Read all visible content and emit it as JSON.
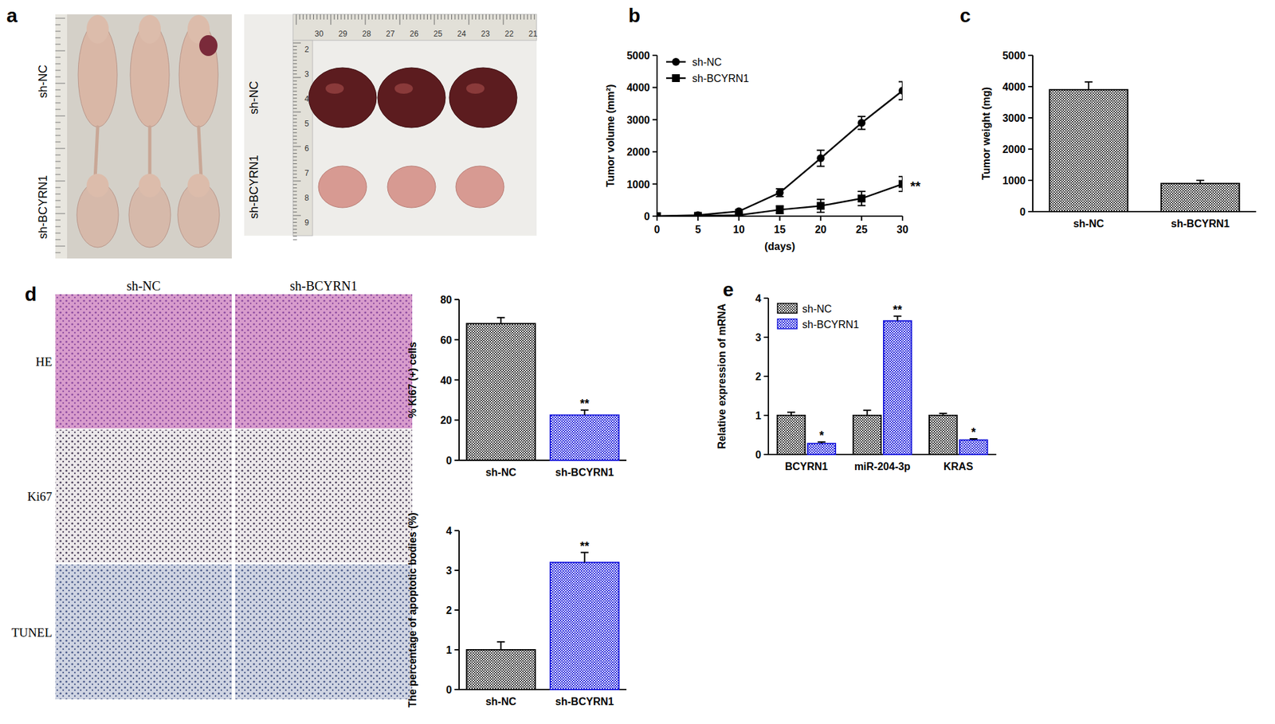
{
  "photo_a": {
    "label": "a",
    "rows": [
      "sh-NC",
      "sh-BCYRN1"
    ],
    "ruler_top": [
      "30",
      "29",
      "28",
      "27",
      "26",
      "25",
      "24",
      "23",
      "22",
      "21"
    ],
    "ruler_left": [
      "2",
      "3",
      "4",
      "5",
      "6",
      "7",
      "8",
      "9"
    ]
  },
  "photo_d": {
    "label": "d",
    "columns": [
      "sh-NC",
      "sh-BCYRN1"
    ],
    "rows": [
      "HE",
      "Ki67",
      "TUNEL"
    ]
  },
  "chart_data": [
    {
      "type": "line",
      "label": "b",
      "x": [
        0,
        5,
        10,
        15,
        20,
        25,
        30
      ],
      "xlim": [
        0,
        30
      ],
      "xticks": [
        0,
        5,
        10,
        15,
        20,
        25,
        30
      ],
      "ylim": [
        0,
        5000
      ],
      "yticks": [
        0,
        1000,
        2000,
        3000,
        4000,
        5000
      ],
      "x_label": "(days)",
      "y_label": "Tumor volume (mm²)",
      "legend": "upper left",
      "series": [
        {
          "name": "sh-NC",
          "color": "#000000",
          "marker": "circle",
          "values": [
            0,
            30,
            150,
            730,
            1800,
            2900,
            3900
          ],
          "errors": [
            0,
            20,
            50,
            120,
            250,
            200,
            280
          ]
        },
        {
          "name": "sh-BCYRN1",
          "color": "#000000",
          "marker": "square",
          "values": [
            0,
            10,
            30,
            200,
            320,
            550,
            1000
          ],
          "errors": [
            0,
            10,
            20,
            120,
            200,
            220,
            230
          ],
          "annotation": "**"
        }
      ]
    },
    {
      "type": "bar",
      "label": "c",
      "categories": [
        "sh-NC",
        "sh-BCYRN1"
      ],
      "values": [
        3900,
        900
      ],
      "errors": [
        250,
        100
      ],
      "colors": [
        "#333333",
        "#333333"
      ],
      "ylim": [
        0,
        5000
      ],
      "yticks": [
        0,
        1000,
        2000,
        3000,
        4000,
        5000
      ],
      "y_label": "Tumor weight (mg)"
    },
    {
      "type": "bar",
      "categories": [
        "sh-NC",
        "sh-BCYRN1"
      ],
      "values": [
        68,
        22.5
      ],
      "errors": [
        3,
        2.5
      ],
      "significance": [
        null,
        "**"
      ],
      "colors": [
        "#333333",
        "#1a1adb"
      ],
      "ylim": [
        0,
        80
      ],
      "yticks": [
        0,
        20,
        40,
        60,
        80
      ],
      "y_label": "% Ki67 (+) cells"
    },
    {
      "type": "bar",
      "categories": [
        "sh-NC",
        "sh-BCYRN1"
      ],
      "values": [
        1.0,
        3.2
      ],
      "errors": [
        0.2,
        0.25
      ],
      "significance": [
        null,
        "**"
      ],
      "colors": [
        "#333333",
        "#1a1adb"
      ],
      "ylim": [
        0,
        4
      ],
      "yticks": [
        0,
        1,
        2,
        3,
        4
      ],
      "y_label": "The percentage of apoptotic bodies (%)"
    },
    {
      "type": "bar",
      "label": "e",
      "categories": [
        "BCYRN1",
        "miR-204-3p",
        "KRAS"
      ],
      "ylim": [
        0,
        4
      ],
      "yticks": [
        0,
        1,
        2,
        3,
        4
      ],
      "y_label": "Relative expression of mRNA",
      "legend": "upper left",
      "series": [
        {
          "name": "sh-NC",
          "color": "#333333",
          "values": [
            1,
            1,
            1
          ],
          "errors": [
            0.08,
            0.13,
            0.05
          ]
        },
        {
          "name": "sh-BCYRN1",
          "color": "#1a1adb",
          "values": [
            0.28,
            3.42,
            0.37
          ],
          "errors": [
            0.04,
            0.12,
            0.03
          ],
          "significance": [
            "*",
            "**",
            "*"
          ]
        }
      ]
    }
  ]
}
